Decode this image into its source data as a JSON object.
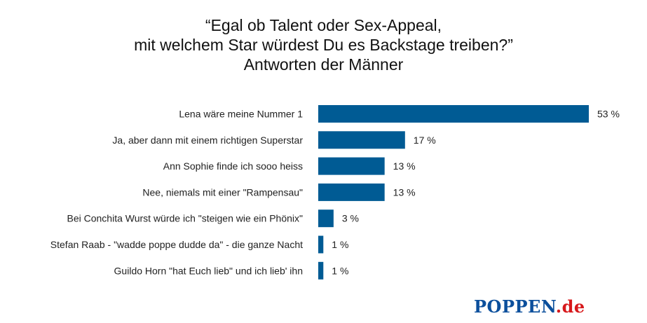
{
  "chart_data": {
    "type": "bar",
    "orientation": "horizontal",
    "title": [
      "“Egal ob Talent oder Sex-Appeal,",
      "mit welchem Star würdest Du es Backstage treiben?”",
      "Antworten der Männer"
    ],
    "categories": [
      "Lena wäre meine Nummer 1",
      "Ja, aber dann mit einem richtigen Superstar",
      "Ann Sophie finde ich sooo heiss",
      "Nee, niemals mit einer \"Rampensau\"",
      "Bei Conchita Wurst würde ich \"steigen wie ein Phönix\"",
      "Stefan Raab - \"wadde poppe dudde da\" - die ganze Nacht",
      "Guildo Horn \"hat Euch lieb\" und ich lieb' ihn"
    ],
    "values": [
      53,
      17,
      13,
      13,
      3,
      1,
      1
    ],
    "value_labels": [
      "53 %",
      "17 %",
      "13 %",
      "13 %",
      "3 %",
      "1 %",
      "1 %"
    ],
    "unit": "%",
    "xlim": [
      0,
      53
    ],
    "grid": false,
    "legend": "none",
    "bar_color": "#005b94"
  },
  "branding": {
    "logo_main": "POPPEN",
    "logo_tld": ".de",
    "logo_main_color": "#0b4f9c",
    "logo_tld_color": "#d7191c"
  }
}
